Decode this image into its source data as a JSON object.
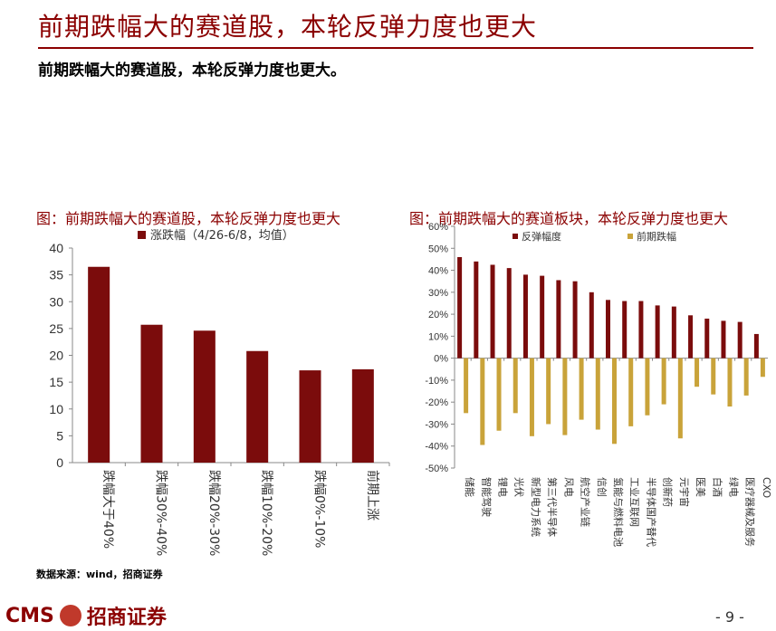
{
  "page": {
    "title": "前期跌幅大的赛道股，本轮反弹力度也更大",
    "subtitle": "前期跌幅大的赛道股，本轮反弹力度也更大。",
    "source": "数据来源：wind，招商证券",
    "logo_latin": "CMS",
    "logo_cn": "招商证券",
    "page_number": "- 9 -"
  },
  "colors": {
    "accent": "#8B0000",
    "gold": "#C9A33A"
  },
  "chart_data": [
    {
      "type": "bar",
      "title": "图：前期跌幅大的赛道股，本轮反弹力度也更大",
      "categories": [
        "跌幅大于40%",
        "跌幅30%-40%",
        "跌幅20%-30%",
        "跌幅10%-20%",
        "跌幅0%-10%",
        "前期上涨"
      ],
      "series": [
        {
          "name": "涨跌幅（4/26-6/8，均值）",
          "values": [
            36.5,
            25.7,
            24.6,
            20.8,
            17.2,
            17.4
          ]
        }
      ],
      "ylim": [
        0,
        40
      ],
      "yticks": [
        0,
        5,
        10,
        15,
        20,
        25,
        30,
        35,
        40
      ],
      "legend": "top",
      "grid": false
    },
    {
      "type": "bar",
      "title": "图：前期跌幅大的赛道板块，本轮反弹力度也更大",
      "categories": [
        "储能",
        "智能驾驶",
        "锂电",
        "光伏",
        "新型电力系统",
        "第三代半导体",
        "风电",
        "航空产业链",
        "信创",
        "氢能与燃料电池",
        "工业互联网",
        "半导体国产替代",
        "创新药",
        "元宇宙",
        "医美",
        "白酒",
        "绿电",
        "医疗器械及服务",
        "CXO"
      ],
      "series": [
        {
          "name": "反弹幅度",
          "values": [
            46,
            44,
            42.5,
            41,
            38,
            37.5,
            35.5,
            35,
            30,
            26.5,
            26,
            26,
            24,
            23.5,
            19.5,
            18,
            17,
            16.5,
            11
          ]
        },
        {
          "name": "前期跌幅",
          "values": [
            -25,
            -39.5,
            -33,
            -25,
            -35.5,
            -30,
            -35,
            -28,
            -32.5,
            -39,
            -31,
            -26,
            -21,
            -36.5,
            -13,
            -16.5,
            -22,
            -17,
            -8.5
          ]
        }
      ],
      "ylim": [
        -50,
        60
      ],
      "yticks": [
        -50,
        -40,
        -30,
        -20,
        -10,
        0,
        10,
        20,
        30,
        40,
        50,
        60
      ],
      "ytick_labels": [
        "-50%",
        "-40%",
        "-30%",
        "-20%",
        "-10%",
        "0%",
        "10%",
        "20%",
        "30%",
        "40%",
        "50%",
        "60%"
      ],
      "legend": "top",
      "grid": false
    }
  ]
}
